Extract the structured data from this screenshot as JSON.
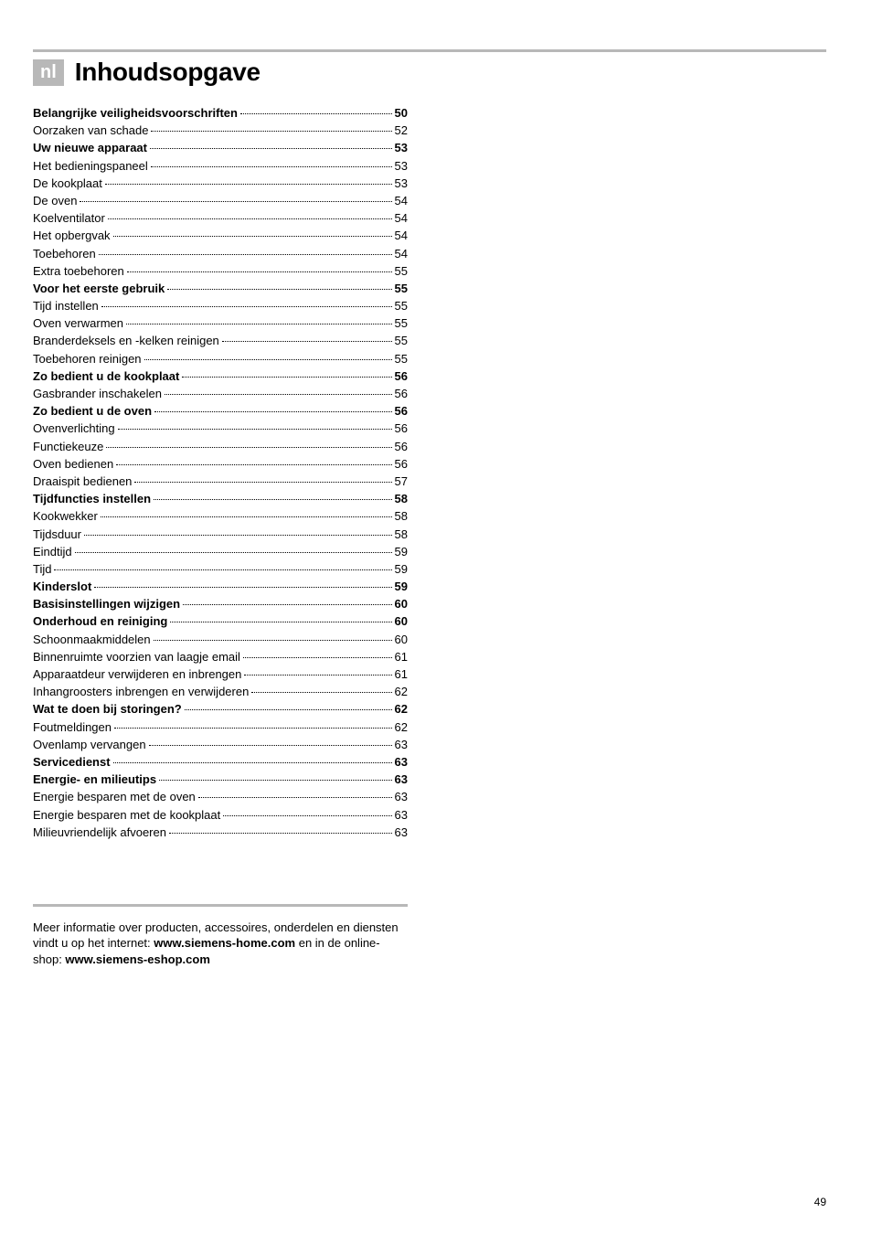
{
  "lang_badge": "nl",
  "title": "Inhoudsopgave",
  "toc": [
    {
      "label": "Belangrijke veiligheidsvoorschriften",
      "page": "50",
      "bold": true
    },
    {
      "label": "Oorzaken van schade",
      "page": "52",
      "bold": false
    },
    {
      "label": "Uw nieuwe apparaat",
      "page": "53",
      "bold": true
    },
    {
      "label": "Het bedieningspaneel",
      "page": "53",
      "bold": false
    },
    {
      "label": "De kookplaat",
      "page": "53",
      "bold": false
    },
    {
      "label": "De oven",
      "page": "54",
      "bold": false
    },
    {
      "label": "Koelventilator",
      "page": "54",
      "bold": false
    },
    {
      "label": "Het opbergvak",
      "page": "54",
      "bold": false
    },
    {
      "label": "Toebehoren",
      "page": "54",
      "bold": false
    },
    {
      "label": "Extra toebehoren",
      "page": "55",
      "bold": false
    },
    {
      "label": "Voor het eerste gebruik",
      "page": "55",
      "bold": true
    },
    {
      "label": "Tijd instellen",
      "page": "55",
      "bold": false
    },
    {
      "label": "Oven verwarmen",
      "page": "55",
      "bold": false
    },
    {
      "label": "Branderdeksels en -kelken reinigen",
      "page": "55",
      "bold": false
    },
    {
      "label": "Toebehoren reinigen",
      "page": "55",
      "bold": false
    },
    {
      "label": "Zo bedient u de kookplaat",
      "page": "56",
      "bold": true
    },
    {
      "label": "Gasbrander inschakelen",
      "page": "56",
      "bold": false
    },
    {
      "label": "Zo bedient u de oven",
      "page": "56",
      "bold": true
    },
    {
      "label": "Ovenverlichting",
      "page": "56",
      "bold": false
    },
    {
      "label": "Functiekeuze",
      "page": "56",
      "bold": false
    },
    {
      "label": "Oven bedienen",
      "page": "56",
      "bold": false
    },
    {
      "label": "Draaispit bedienen",
      "page": "57",
      "bold": false
    },
    {
      "label": "Tijdfuncties instellen",
      "page": "58",
      "bold": true
    },
    {
      "label": "Kookwekker",
      "page": "58",
      "bold": false
    },
    {
      "label": "Tijdsduur",
      "page": "58",
      "bold": false
    },
    {
      "label": "Eindtijd",
      "page": "59",
      "bold": false
    },
    {
      "label": "Tijd",
      "page": "59",
      "bold": false
    },
    {
      "label": "Kinderslot",
      "page": "59",
      "bold": true
    },
    {
      "label": "Basisinstellingen wijzigen",
      "page": "60",
      "bold": true
    },
    {
      "label": "Onderhoud en reiniging",
      "page": "60",
      "bold": true
    },
    {
      "label": "Schoonmaakmiddelen",
      "page": "60",
      "bold": false
    },
    {
      "label": "Binnenruimte voorzien van laagje email",
      "page": "61",
      "bold": false
    },
    {
      "label": "Apparaatdeur verwijderen en inbrengen",
      "page": "61",
      "bold": false
    },
    {
      "label": "Inhangroosters inbrengen en verwijderen",
      "page": "62",
      "bold": false
    },
    {
      "label": "Wat te doen bij storingen?",
      "page": "62",
      "bold": true
    },
    {
      "label": "Foutmeldingen",
      "page": "62",
      "bold": false
    },
    {
      "label": "Ovenlamp vervangen",
      "page": "63",
      "bold": false
    },
    {
      "label": "Servicedienst",
      "page": "63",
      "bold": true
    },
    {
      "label": "Energie- en milieutips",
      "page": "63",
      "bold": true
    },
    {
      "label": "Energie besparen met de oven",
      "page": "63",
      "bold": false
    },
    {
      "label": "Energie besparen met de kookplaat",
      "page": "63",
      "bold": false
    },
    {
      "label": "Milieuvriendelijk afvoeren",
      "page": "63",
      "bold": false
    }
  ],
  "footer": {
    "pre1": "Meer informatie over producten, accessoires, onderdelen en diensten vindt u op het internet: ",
    "url1": "www.siemens-home.com",
    "mid": " en in de online-shop: ",
    "url2": "www.siemens-eshop.com"
  },
  "page_number": "49"
}
